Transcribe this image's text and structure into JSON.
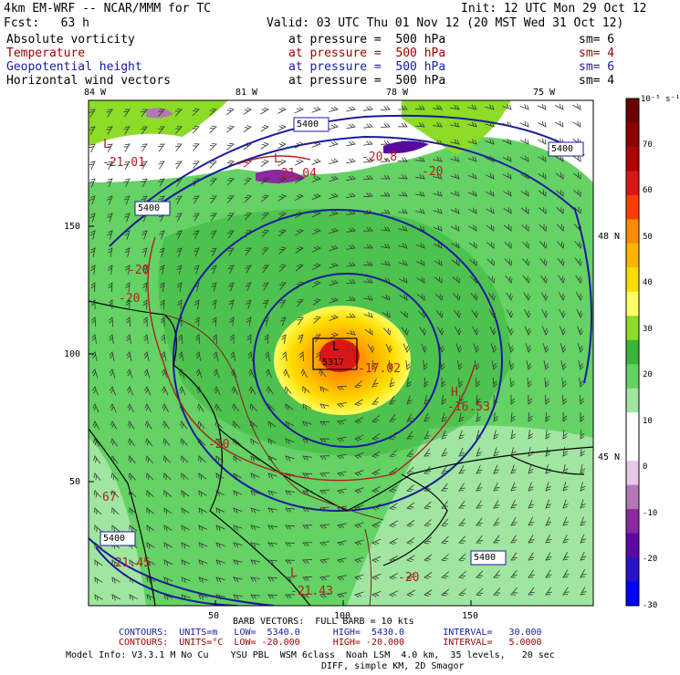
{
  "header": {
    "model": "4km EM-WRF -- NCAR/MMM for TC",
    "init": "Init: 12 UTC Mon 29 Oct 12",
    "fcst": "Fcst:   63 h",
    "valid": "Valid: 03 UTC Thu 01 Nov 12 (20 MST Wed 31 Oct 12)"
  },
  "fields": [
    {
      "name": "Absolute vorticity",
      "level": "at pressure =  500 hPa",
      "sm": "sm= 6",
      "color": "#000000"
    },
    {
      "name": "Temperature",
      "level": "at pressure =  500 hPa",
      "sm": "sm= 4",
      "color": "#a00000"
    },
    {
      "name": "Geopotential height",
      "level": "at pressure =  500 hPa",
      "sm": "sm= 6",
      "color": "#1a1aa0"
    },
    {
      "name": "Horizontal wind vectors",
      "level": "at pressure =  500 hPa",
      "sm": "sm= 4",
      "color": "#000000"
    }
  ],
  "axes": {
    "top_labels": [
      "84 W",
      "81 W",
      "78 W",
      "75 W"
    ],
    "left_labels": [
      "150",
      "100",
      "50"
    ],
    "bottom_labels": [
      "50",
      "100",
      "150"
    ],
    "right_labels": [
      "48 N",
      "45 N"
    ]
  },
  "map_annotations": {
    "height_boxes": [
      "5400",
      "5400",
      "5400",
      "5400",
      "5400"
    ],
    "center_box": "5317",
    "lows": [
      "L",
      "L",
      "L",
      "L"
    ],
    "high": "H",
    "temp_labels": [
      "-21.01",
      "-21.04",
      "-20.8",
      "-20",
      "-20",
      "-20",
      "-17.02",
      "-16.53",
      "-21.45",
      "-21.43",
      "-20",
      "-20",
      "67"
    ]
  },
  "colorbar": {
    "unit": "10⁻⁵ s⁻¹",
    "tick_labels": [
      "70",
      "60",
      "50",
      "40",
      "30",
      "20",
      "10",
      "0",
      "-10",
      "-20",
      "-30"
    ],
    "colors": [
      "#6b0000",
      "#8b0000",
      "#b00000",
      "#d81818",
      "#ff3c00",
      "#ff8c00",
      "#ffb400",
      "#ffdc00",
      "#ffff64",
      "#8cdc28",
      "#3cb43c",
      "#64d264",
      "#a0e6a0",
      "#ffffff",
      "#ffffff",
      "#e6c8e6",
      "#b478b4",
      "#8c28a0",
      "#5a0aa0",
      "#2814c8",
      "#0000ff"
    ]
  },
  "footer": {
    "barb": "BARB VECTORS:  FULL BARB = 10 kts",
    "contours_h": "CONTOURS:  UNITS=m   LOW=  5340.0      HIGH=  5430.0       INTERVAL=   30.000",
    "contours_t": "CONTOURS:  UNITS=°C  LOW= -20.000      HIGH= -20.000       INTERVAL=   5.0000",
    "model_info": "Model Info: V3.3.1 M No Cu    YSU PBL  WSM 6class  Noah LSM  4.0 km,  35 levels,   20 sec",
    "model_info2": "DIFF, simple KM, 2D Smagor"
  }
}
